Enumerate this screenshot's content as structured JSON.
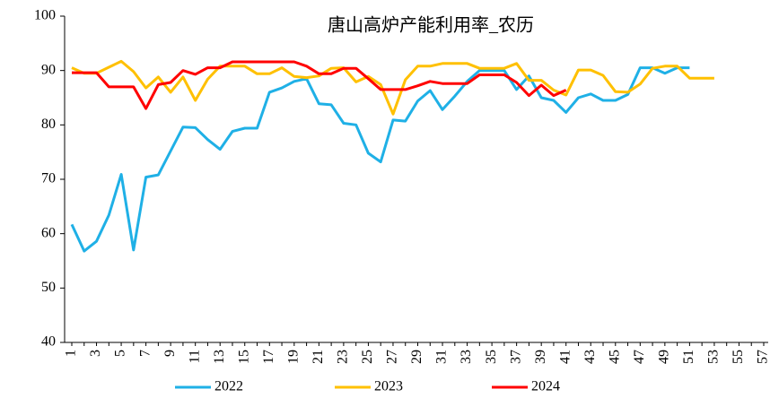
{
  "chart_data": {
    "type": "line",
    "title": "唐山高炉产能利用率_农历",
    "categories": [
      1,
      null,
      3,
      null,
      5,
      null,
      7,
      null,
      9,
      null,
      11,
      null,
      13,
      null,
      15,
      null,
      17,
      null,
      19,
      null,
      21,
      null,
      23,
      null,
      25,
      null,
      27,
      null,
      29,
      null,
      31,
      null,
      33,
      null,
      35,
      null,
      37,
      null,
      39,
      null,
      41,
      null,
      43,
      null,
      45,
      null,
      47,
      null,
      49,
      null,
      51,
      null,
      53,
      null,
      55,
      null,
      57
    ],
    "ylim": [
      40,
      100
    ],
    "yticks": [
      40,
      50,
      60,
      70,
      80,
      90,
      100
    ],
    "grid": false,
    "legend": "bottom",
    "series": [
      {
        "name": "2022",
        "color": "#1fb0e6",
        "values": [
          61.7,
          56.8,
          58.6,
          63.4,
          70.9,
          57,
          70.4,
          70.8,
          75.2,
          79.6,
          79.5,
          77.3,
          75.5,
          78.8,
          79.4,
          79.4,
          86,
          86.8,
          88,
          88.5,
          83.9,
          83.7,
          80.3,
          80,
          74.8,
          73.2,
          80.9,
          80.7,
          84.4,
          86.3,
          82.8,
          85.3,
          88,
          90,
          90,
          90,
          86.5,
          89,
          85,
          84.5,
          82.3,
          85,
          85.7,
          84.5,
          84.5,
          85.6,
          90.5,
          90.5,
          89.5,
          90.5,
          90.5,
          null,
          null,
          null,
          null,
          null,
          null
        ]
      },
      {
        "name": "2023",
        "color": "#ffc000",
        "values": [
          90.5,
          89.5,
          89.5,
          90.6,
          91.7,
          89.8,
          86.8,
          88.8,
          86,
          88.8,
          84.5,
          88.4,
          90.8,
          90.8,
          90.8,
          89.4,
          89.4,
          90.5,
          88.9,
          88.7,
          89,
          90.4,
          90.5,
          87.9,
          88.9,
          87.4,
          82,
          88.3,
          90.8,
          90.8,
          91.3,
          91.3,
          91.3,
          90.4,
          90.4,
          90.4,
          91.3,
          88.2,
          88.2,
          86.4,
          85.5,
          90.1,
          90.1,
          89.1,
          86.1,
          86,
          87.5,
          90.4,
          90.8,
          90.8,
          88.6,
          88.6,
          88.6,
          null,
          null,
          null,
          null
        ]
      },
      {
        "name": "2024",
        "color": "#ff0000",
        "values": [
          89.6,
          89.6,
          89.6,
          87,
          87,
          87,
          83,
          87.4,
          87.8,
          90,
          89.3,
          90.5,
          90.5,
          91.6,
          91.6,
          91.6,
          91.6,
          91.6,
          91.6,
          90.8,
          89.4,
          89.4,
          90.4,
          90.4,
          88.5,
          86.5,
          86.5,
          86.5,
          87.2,
          88,
          87.6,
          87.6,
          87.6,
          89.2,
          89.2,
          89.2,
          87.8,
          85.4,
          87.3,
          85.4,
          86.4,
          null,
          null,
          null,
          null,
          null,
          null,
          null,
          null,
          null,
          null,
          null,
          null,
          null,
          null,
          null,
          null
        ]
      }
    ]
  }
}
